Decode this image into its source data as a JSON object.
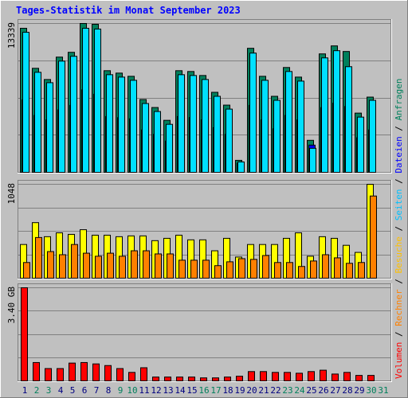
{
  "chart_data": {
    "type": "bar",
    "title": "Tages-Statistik im Monat September 2023",
    "categories": [
      "1",
      "2",
      "3",
      "4",
      "5",
      "6",
      "7",
      "8",
      "9",
      "10",
      "11",
      "12",
      "13",
      "14",
      "15",
      "16",
      "17",
      "18",
      "19",
      "20",
      "21",
      "22",
      "23",
      "24",
      "25",
      "26",
      "27",
      "28",
      "29",
      "30",
      "31"
    ],
    "weekend": [
      "2",
      "3",
      "9",
      "10",
      "16",
      "17",
      "23",
      "24",
      "30",
      "31"
    ],
    "label_color": "#000080",
    "weekend_color": "#00805c",
    "legend_separator": " / ",
    "panels": [
      {
        "ylim": [
          0,
          13339
        ],
        "yticks": [
          13339
        ],
        "series": [
          {
            "name": "Anfragen",
            "color": "#00805c",
            "text_color": "#00805c",
            "values": [
              12909,
              9323,
              8319,
              10327,
              10757,
              13339,
              13267,
              9108,
              8893,
              8606,
              6526,
              5809,
              4661,
              9108,
              9036,
              8677,
              7171,
              6024,
              1076,
              11116,
              8606,
              6813,
              9395,
              8534,
              2869,
              10614,
              11331,
              10829,
              5307,
              6741,
              null
            ]
          },
          {
            "name": "Dateien",
            "color": "#0000ff",
            "text_color": "#0000ff",
            "values": [
              6500,
              5100,
              4700,
              5600,
              6000,
              7400,
              7000,
              5000,
              4900,
              4800,
              3800,
              3400,
              2800,
              5000,
              4900,
              4700,
              4000,
              3400,
              800,
              6000,
              4700,
              3900,
              5100,
              4700,
              2439,
              5800,
              6200,
              5900,
              3100,
              3800,
              null
            ]
          },
          {
            "name": "Seiten",
            "color": "#00e0ff",
            "text_color": "#00c0ff",
            "values": [
              12550,
              8964,
              8032,
              9968,
              10398,
              12909,
              12837,
              8749,
              8534,
              8247,
              6167,
              5450,
              4302,
              8749,
              8677,
              8319,
              6813,
              5665,
              932,
              10686,
              8247,
              6454,
              9036,
              8175,
              2152,
              10255,
              10901,
              9467,
              4948,
              6454,
              null
            ]
          }
        ]
      },
      {
        "ylim": [
          0,
          1048
        ],
        "yticks": [
          1048
        ],
        "series": [
          {
            "name": "Besuche",
            "color": "#ffff00",
            "text_color": "#ffc000",
            "values": [
              376,
              620,
              463,
              506,
              489,
              541,
              480,
              480,
              463,
              472,
              472,
              419,
              445,
              480,
              428,
              428,
              306,
              445,
              236,
              376,
              376,
              376,
              445,
              506,
              245,
              463,
              445,
              367,
              288,
              1048,
              null
            ]
          },
          {
            "name": "Rechner",
            "color": "#ff8000",
            "text_color": "#ff8000",
            "values": [
              175,
              454,
              297,
              262,
              376,
              279,
              245,
              279,
              245,
              306,
              306,
              271,
              271,
              201,
              201,
              201,
              140,
              183,
              218,
              210,
              253,
              175,
              175,
              131,
              192,
              262,
              227,
              166,
              175,
              917,
              null
            ]
          }
        ]
      },
      {
        "ylim": [
          0,
          3.4
        ],
        "yticks": [
          {
            "value": 3.4,
            "label": "3.40 GB"
          }
        ],
        "series": [
          {
            "name": "Volumen",
            "color": "#ff0000",
            "text_color": "#ff0000",
            "values": [
              3.4,
              0.67,
              0.45,
              0.45,
              0.65,
              0.67,
              0.62,
              0.56,
              0.45,
              0.31,
              0.48,
              0.14,
              0.14,
              0.14,
              0.14,
              0.11,
              0.11,
              0.14,
              0.17,
              0.34,
              0.34,
              0.31,
              0.31,
              0.28,
              0.34,
              0.39,
              0.25,
              0.31,
              0.2,
              0.2,
              null
            ]
          }
        ]
      }
    ]
  }
}
